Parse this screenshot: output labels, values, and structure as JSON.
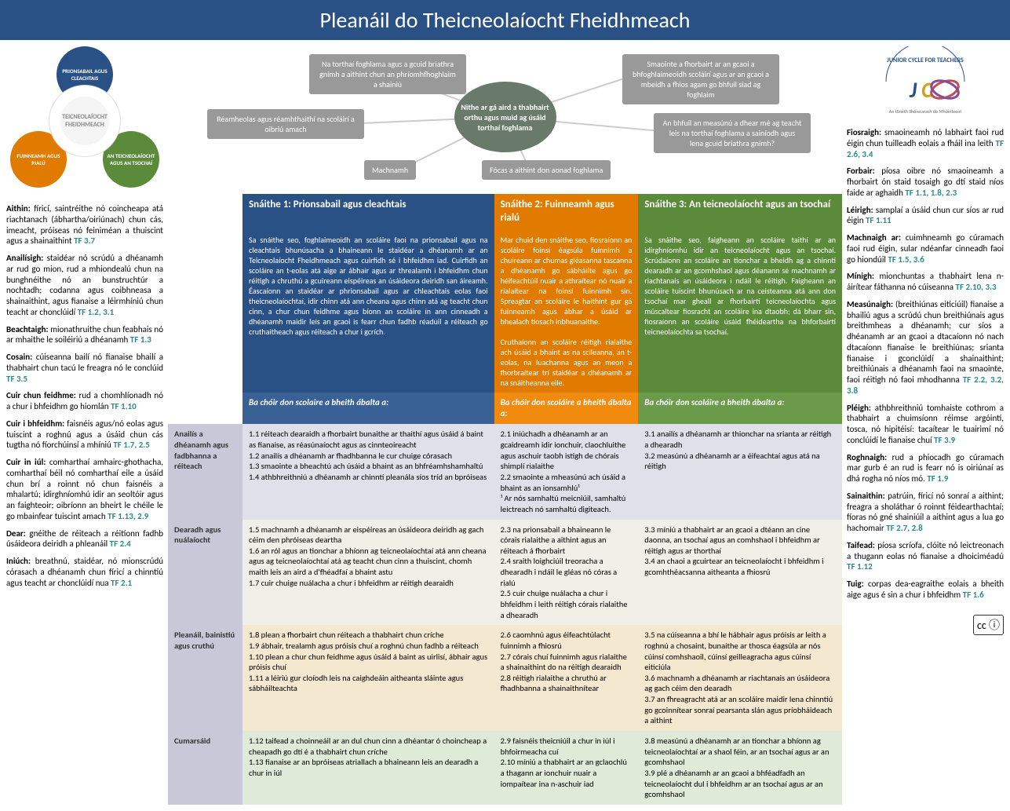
{
  "title": "Pleanáil do Theicneolaíocht Fheidhmeach",
  "wheel": {
    "center": "TEICNEOLAÍOCHT FHEIDHMEACH",
    "node1": "PRIONSABAIL AGUS CLEACHTAIS",
    "node2": "FUINNEAMH AGUS RIALÚ",
    "node3": "AN TEICNEOLAÍOCHT AGUS AN TSOCHAÍ"
  },
  "mindmap": {
    "center": "Nithe ar gá aird a thabhairt orthu agus muid ag úsáid torthaí foghlama",
    "n1": "Na torthaí foghlama agus a gcuid briathra gnímh a aithint chun an phríomhfhoghlaim a shainiú",
    "n2": "Smaointe a fhorbairt ar an gcaoi a bhfoghlaimeoidh scoláirí agus ar an gcaoi a mbeidh a fhios agam go bhfuil siad ag foghlaim",
    "n3": "Réamheolas agus réamhthaithí na scoláirí a oibriú amach",
    "n4": "An bhfuil an measúnú a dhear mé ag teacht leis na torthaí foghlama a sainíodh agus lena gcuid briathra gnímh?",
    "n5": "Machnamh",
    "n6": "Fócas a aithint don aonad foghlama"
  },
  "strands": {
    "s1": {
      "title": "Snáithe 1: Prionsabail agus cleachtais",
      "desc": "Sa snáithe seo, foghlaimeoidh an scoláire faoi na prionsabail agus na cleachtais bhunúsacha a bhaineann le staidéar a dhéanamh ar an Teicneolaíocht Fheidhmeach agus cuirfidh sé i bhfeidhm iad. Cuirfidh an scoláire an t-eolas atá aige ar ábhair agus ar threalamh i bhfeidhm chun réitigh a chruthú a gcuireann eispéireas an úsáideora deiridh san áireamh. Éascaíonn an staidéar ar phrionsabail agus ar chleachtais eolas faoi theicneolaíochtaí, idir chinn atá ann cheana agus chinn atá ag teacht chun cinn, a chur chun feidhme agus bíonn an scoláire in ann cinneadh a dhéanamh maidir leis an gcaoi is fearr chun fadhb réadúil a réiteach go cruthaitheach agus réiteach a chur i gcrích.",
      "able": "Ba chóir don scolaire a bheith ábalta a:"
    },
    "s2": {
      "title": "Snáithe 2: Fuinneamh agus rialú",
      "desc": "Mar chuid den snáithe seo, fiosraíonn an scoláire foinsí éagsúla fuinnimh a chuireann ar chumas gléasanna tascanna a dhéanamh go sábháilte agus go héifeachtúil nuair a athraítear nó nuair a rialaítear na foinsí fuinnimh sin. Spreagtar an scoláire le haithint gur gá fuinneamh agus ábhar a úsáid ar bhealach tíosach inbhuanaithe.\n\nCruthaíonn an scoláire réitigh rialaithe ach úsáid a bhaint as na scileanna, an t-eolas, na luachanna agus an meon a fhorbraítear trí staidéar a dhéanamh ar na snáitheanna eile.",
      "able": "Ba chóir don scoláire a bheith ábalta a:"
    },
    "s3": {
      "title": "Snáithe 3: An teicneolaíocht agus an tsochaí",
      "desc": "Sa snáithe seo, faigheann an scoláire taithí ar an idirghníomhú idir an teicneolaíocht agus an tsochaí. Scrúdaíonn an scoláire an tionchar a bheidh ag a chinntí dearaidh ar an gcomhshaol agus déanann sé machnamh ar riachtanais an úsáideora i ndáil le réitigh. Faigheann an scoláire tuiscint bhunúsach ar na ceisteanna atá ann don tsochaí mar gheall ar fhorbairtí teicneolaíochta agus múscaltear fiosracht an scoláire ina dtaobh; dá bharr sin, fiosraíonn an scoláire úsáid fhéideartha na bhforbairtí teicneolaíochta sa tsochaí.",
      "able": "Ba chóir don scoláire a bheith ábalta a:"
    }
  },
  "rows": {
    "analysis": {
      "label": "Anailís a dhéanamh agus fadbhanna a réiteach",
      "c1": "1.1 réiteach dearaidh a fhorbairt bunaithe ar thaithí agus úsáid á baint as fianaise, as réasúnaíocht agus as cinnteoireacht\n1.2 anailís a dhéanamh ar fhadhbanna le cur chuige córasach\n1.3 smaointe a bheachtú ach úsáid a bhaint as an bhfréamhshamhaltú\n1.4 athbhreithniú a dhéanamh ar chinntí pleanála síos tríd an bpróiseas",
      "c2": "2.1 iniúchadh a dhéanamh ar an gcaidreamh idir ionchuir, claochluithe agus aschuir taobh istigh de chórais shimplí rialaithe\n2.2 smaointe a mheasúnú ach úsáid a bhaint as an ionsamhlú¹\n¹ Ar nós samhaltú meicniúil, samhaltú leictreach nó samhaltú digiteach.",
      "c3": "3.1 anailís a dhéanamh ar thionchar na srianta ar réitigh a dhearadh\n3.2 measúnú a dhéanamh ar a éifeachtaí agus atá na réitigh"
    },
    "design": {
      "label": "Dearadh agus nuálaíocht",
      "c1": "1.5 machnamh a dhéanamh ar eispéireas an úsáideora deiridh ag gach céim den phróiseas deartha\n1.6 an ról agus an tionchar a bhíonn ag teicneolaíochtaí atá ann cheana agus ag teicneolaíochtaí atá ag teacht chun cinn a thuiscint, chomh maith leis an aird a d'fhéadfaí a bhaint astu\n1.7 cuir chuige nuálacha a chur i bhfeidhm ar réitigh dearaidh",
      "c2": "2.3 na prionsabail a bhaineann le córais rialaithe a aithint agus an réiteach á fhorbairt\n2.4 sraith loighciúil treoracha a dhearadh i ndáil le gléas nó córas a rialú\n2.5 cuir chuige nuálacha a chur i bhfeidhm i leith réitigh córais rialaithe a dhearadh",
      "c3": "3.3 míniú a thabhairt ar an gcaoi a dtéann an cine daonna, an tsochaí agus an comhshaol i bhfeidhm ar réitigh agus ar thorthaí\n3.4 an chaoi a gcuirtear an teicneolaíocht i bhfeidhm i gcomhthéacsanna aitheanta a fhiosrú"
    },
    "plan": {
      "label": "Pleanáil, bainistiú agus cruthú",
      "c1": "1.8 plean a fhorbairt chun réiteach a thabhairt chun críche\n1.9 ábhair, trealamh agus próisis chuí a roghnú chun fadhb a réiteach\n1.10 plean a chur chun feidhme agus úsáid á baint as uirlisí, ábhair agus próisis chuí\n1.11 a léiriú gur cloíodh leis na caighdeáin aitheanta sláinte agus sábháilteachta",
      "c2": "2.6 caomhnú agus éifeachtúlacht fuinnimh a fhiosrú\n2.7 córais chuí fuinnimh agus rialaithe a shainaithint do na réitigh dearaidh\n2.8 réitigh rialaithe a chruthú ar fhadhbanna a shainaithnítear",
      "c3": "3.5 na cúiseanna a bhí le hábhair agus próisis ar leith a roghnú a chosaint, bunaithe ar thosca éagsúla ar nós cúinsí comhshaoil, cúinsí geilleagracha agus cúinsí eiticiúla\n3.6 machnamh a dhéanamh ar riachtanais an úsáideora ag gach céim den dearadh\n3.7 an fhreagracht atá ar an scoláire maidir lena chinntiú go gcoinnítear sonraí pearsanta slán agus príobháideach a aithint"
    },
    "comm": {
      "label": "Cumarsáid",
      "c1": "1.12 taifead a choinneáil ar an dul chun cinn a dhéantar ó choincheap a cheapadh go dtí é a thabhairt chun críche\n1.13 fianaise ar an bpróiseas atriallach a bhaineann leis an dearadh a chur in iúl",
      "c2": "2.9 faisnéis theicniúil a chur in iúl i bhfoirmeacha cuí\n2.10 míniú a thabhairt ar an gclaochlú a thagann ar ionchuir nuair a iompaítear ina n-aschuir iad",
      "c3": "3.8 measúnú a dhéanamh ar an tionchar a bhíonn ag teicneolaíochtaí ar a shaol féin, ar an tsochaí agus ar an gcomhshaol\n3.9 plé a dhéanamh ar an gcaoi a bhféadfadh an teicneolaíocht dul i bhfeidhm ar an tsochaí agus ar an gcomhshaol"
    }
  },
  "glossary_left": [
    {
      "t": "Aithin:",
      "d": "fíricí, saintréithe nó coincheapa atá riachtanach (ábhartha/oiriúnach) chun cás, imeacht, próiseas nó feiniméan a thuiscint agus a shainaithint",
      "tf": "TF 3.7"
    },
    {
      "t": "Anailísigh:",
      "d": "staidéar nó scrúdú a dhéanamh ar rud go mion, rud a mhiondealú chun na bunghnéithe nó an bunstruchtúr a nochtadh; codanna agus coibhneasa a shainaithint, agus fianaise a léirmhíniú chun teacht ar chonclúidí",
      "tf": "TF 1.2, 3.1"
    },
    {
      "t": "Beachtaigh:",
      "d": "mionathruithe chun feabhais nó ar mhaithe le soiléiriú a dhéanamh",
      "tf": "TF 1.3"
    },
    {
      "t": "Cosain:",
      "d": "cúiseanna bailí nó fianaise bhailí a thabhairt chun tacú le freagra nó le conclúid",
      "tf": "TF 3.5"
    },
    {
      "t": "Cuir chun feidhme:",
      "d": "rud a chomhlíonadh nó a chur i bhfeidhm go hiomlán",
      "tf": "TF 1.10"
    },
    {
      "t": "Cuir i bhfeidhm:",
      "d": "faisnéis agus/nó eolas agus tuiscint a roghnú agus a úsáid chun cás tugtha nó fíorchúinsí a mhíniú",
      "tf": "TF 1.7, 2.5"
    },
    {
      "t": "Cuir in iúl:",
      "d": "comharthaí amhairc-ghothacha, comharthaí béil nó comharthaí eile a úsáid chun brí a roinnt nó chun faisnéis a mhalartú; idirghníomhú idir an seoltóir agus an faighteoir; oibríonn an bheirt le chéile le go mbainfear tuiscint amach",
      "tf": "TF 1.13, 2.9"
    },
    {
      "t": "Dear:",
      "d": "gnéithe de réiteach a réitíonn fadhb úsáideora deiridh a phleanáil",
      "tf": "TF 2.4"
    },
    {
      "t": "Iniúch:",
      "d": "breathnú, staidéar, nó mionscrúdú córasach a dhéanamh chun fíricí a chinntiú agus teacht ar chonclúidí nua",
      "tf": "TF 2.1"
    }
  ],
  "glossary_right": [
    {
      "t": "Fiosraigh:",
      "d": "smaoineamh nó labhairt faoi rud éigin chun tuilleadh eolais a fháil ina leith",
      "tf": "TF 2.6, 3.4"
    },
    {
      "t": "Forbair:",
      "d": "píosa oibre nó smaoineamh a fhorbairt ón staid tosaigh go dtí staid níos faide ar aghaidh",
      "tf": "TF 1.1, 1.8, 2.3"
    },
    {
      "t": "Léirigh:",
      "d": "samplaí a úsáid chun cur síos ar rud éigin",
      "tf": "TF 1.11"
    },
    {
      "t": "Machnaigh ar:",
      "d": "cuimhneamh go cúramach faoi rud éigin, sular ndéanfar cinneadh faoi go hiondúil",
      "tf": "TF 1.5, 3.6"
    },
    {
      "t": "Mínigh:",
      "d": "mionchuntas a thabhairt lena n-áirítear fáthanna nó cúiseanna",
      "tf": "TF 2.10, 3.3"
    },
    {
      "t": "Measúnaigh:",
      "d": "(breithiúnas eiticiúil) fianaise a bhailiú agus a scrúdú chun breithiúnais agus breithmheas a dhéanamh; cur síos a dhéanamh ar an gcaoi a dtacaíonn nó nach dtacaíonn fianaise le breithiúnas; srianta fianaise i gconclúidí a shainaithint; breithiúnais a dhéanamh faoi na smaointe, faoi réitigh nó faoi mhodhanna",
      "tf": "TF 2.2, 3.2, 3.8"
    },
    {
      "t": "Pléigh:",
      "d": "athbhreithniú tomhaiste cothrom a thabhairt a chuimsíonn réimse argóintí, tosca, nó hipitéisí: tacaítear le tuairimí nó conclúidí le fianaise chuí",
      "tf": "TF 3.9"
    },
    {
      "t": "Roghnaigh:",
      "d": "rud a phiocadh go cúramach mar gurb é an rud is fearr nó is oiriúnaí as dhá rogha nó níos mó.",
      "tf": "TF 1.9"
    },
    {
      "t": "Sainaithin:",
      "d": "patrúin, fíricí nó sonraí a aithint; freagra a sholáthar ó roinnt féidearthachtaí; fíoras nó gné shainiúil a aithint agus a lua go hachomair",
      "tf": "TF 2.7, 2.8"
    },
    {
      "t": "Taifead:",
      "d": "píosa scríofa, clóite nó leictreonach a thugann eolas nó fianaise a dhoiciméadú",
      "tf": "TF 1.12"
    },
    {
      "t": "Tuig:",
      "d": "corpas dea-eagraithe eolais a bheith aige agus é sin a chur i bhfeidhm",
      "tf": "TF 1.6"
    }
  ],
  "logo": {
    "arc": "JUNIOR CYCLE FOR TEACHERS",
    "sub": "An tSraith Shóisearach do Mhúinteoirí"
  },
  "cc": "cc ⓘ"
}
